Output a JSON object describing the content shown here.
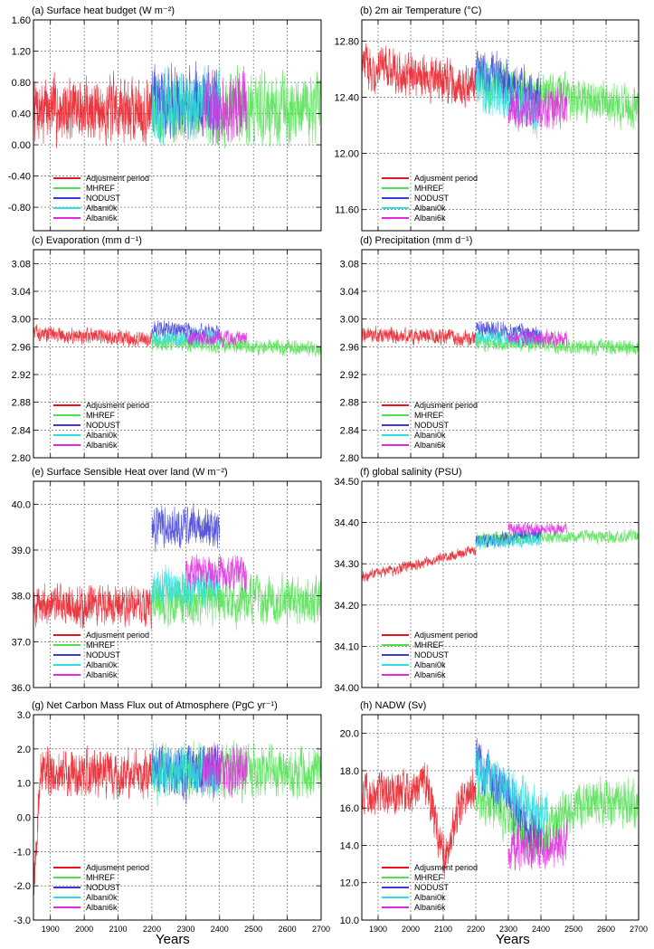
{
  "figure": {
    "xaxis_label": "Years"
  },
  "legend": [
    {
      "name": "Adjusment period",
      "color": "#e8141e"
    },
    {
      "name": "MHREF",
      "color": "#4ee04e"
    },
    {
      "name": "NODUST",
      "color": "#3a3ad8"
    },
    {
      "name": "Albani0k",
      "color": "#30dede"
    },
    {
      "name": "Albani6k",
      "color": "#e028e0"
    }
  ],
  "chart_data": [
    {
      "type": "line",
      "title": "(a) Surface heat budget (W m⁻²)",
      "xlabel": "",
      "ylabel": "",
      "xlim": [
        1850,
        2700
      ],
      "ylim": [
        -1.1,
        1.6
      ],
      "yticks": [
        -0.8,
        -0.4,
        0.0,
        0.4,
        0.8,
        1.2,
        1.6
      ],
      "ytick_labels": [
        "-0.80",
        "-0.40",
        "0.00",
        "0.40",
        "0.80",
        "1.20",
        "1.60"
      ],
      "show_xtick_labels": false,
      "grid": true,
      "legend_position": "bottom-left",
      "series": [
        {
          "name": "Adjusment period",
          "x_start": 1850,
          "x_end": 2200,
          "base": 0.45,
          "amp": 0.32,
          "drift": 0
        },
        {
          "name": "MHREF",
          "x_start": 2200,
          "x_end": 2700,
          "base": 0.45,
          "amp": 0.35,
          "drift": 0
        },
        {
          "name": "NODUST",
          "x_start": 2200,
          "x_end": 2400,
          "base": 0.55,
          "amp": 0.35,
          "drift": 0
        },
        {
          "name": "Albani0k",
          "x_start": 2200,
          "x_end": 2400,
          "base": 0.5,
          "amp": 0.35,
          "drift": 0
        },
        {
          "name": "Albani6k",
          "x_start": 2350,
          "x_end": 2480,
          "base": 0.5,
          "amp": 0.35,
          "drift": 0
        }
      ]
    },
    {
      "type": "line",
      "title": "(b) 2m air Temperature (°C)",
      "xlabel": "",
      "ylabel": "",
      "xlim": [
        1850,
        2700
      ],
      "ylim": [
        11.45,
        12.95
      ],
      "yticks": [
        11.6,
        12.0,
        12.4,
        12.8
      ],
      "ytick_labels": [
        "11.60",
        "12.00",
        "12.40",
        "12.80"
      ],
      "show_xtick_labels": false,
      "grid": true,
      "legend_position": "bottom-left",
      "series": [
        {
          "name": "Adjusment period",
          "x_start": 1850,
          "x_end": 2200,
          "base": 12.55,
          "amp": 0.12,
          "drift": -0.15
        },
        {
          "name": "MHREF",
          "x_start": 2200,
          "x_end": 2700,
          "base": 12.42,
          "amp": 0.12,
          "drift": -0.2
        },
        {
          "name": "NODUST",
          "x_start": 2200,
          "x_end": 2400,
          "base": 12.5,
          "amp": 0.13,
          "drift": -0.25
        },
        {
          "name": "Albani0k",
          "x_start": 2200,
          "x_end": 2400,
          "base": 12.4,
          "amp": 0.14,
          "drift": -0.2
        },
        {
          "name": "Albani6k",
          "x_start": 2300,
          "x_end": 2480,
          "base": 12.32,
          "amp": 0.12,
          "drift": 0
        }
      ]
    },
    {
      "type": "line",
      "title": "(c) Evaporation (mm d⁻¹)",
      "xlabel": "",
      "ylabel": "",
      "xlim": [
        1850,
        2700
      ],
      "ylim": [
        2.8,
        3.1
      ],
      "yticks": [
        2.8,
        2.84,
        2.88,
        2.92,
        2.96,
        3.0,
        3.04,
        3.08
      ],
      "ytick_labels": [
        "2.80",
        "2.84",
        "2.88",
        "2.92",
        "2.96",
        "3.00",
        "3.04",
        "3.08"
      ],
      "show_xtick_labels": false,
      "grid": true,
      "legend_position": "bottom-left",
      "series": [
        {
          "name": "Adjusment period",
          "x_start": 1850,
          "x_end": 2200,
          "base": 2.975,
          "amp": 0.009,
          "drift": -0.008
        },
        {
          "name": "MHREF",
          "x_start": 2200,
          "x_end": 2700,
          "base": 2.962,
          "amp": 0.009,
          "drift": -0.01
        },
        {
          "name": "NODUST",
          "x_start": 2200,
          "x_end": 2400,
          "base": 2.982,
          "amp": 0.01,
          "drift": -0.01
        },
        {
          "name": "Albani0k",
          "x_start": 2200,
          "x_end": 2400,
          "base": 2.972,
          "amp": 0.01,
          "drift": 0
        },
        {
          "name": "Albani6k",
          "x_start": 2300,
          "x_end": 2480,
          "base": 2.972,
          "amp": 0.009,
          "drift": 0
        }
      ]
    },
    {
      "type": "line",
      "title": "(d) Precipitation (mm d⁻¹)",
      "xlabel": "",
      "ylabel": "",
      "xlim": [
        1850,
        2700
      ],
      "ylim": [
        2.8,
        3.1
      ],
      "yticks": [
        2.8,
        2.84,
        2.88,
        2.92,
        2.96,
        3.0,
        3.04,
        3.08
      ],
      "ytick_labels": [
        "2.80",
        "2.84",
        "2.88",
        "2.92",
        "2.96",
        "3.00",
        "3.04",
        "3.08"
      ],
      "show_xtick_labels": false,
      "grid": true,
      "legend_position": "bottom-left",
      "series": [
        {
          "name": "Adjusment period",
          "x_start": 1850,
          "x_end": 2200,
          "base": 2.975,
          "amp": 0.009,
          "drift": -0.008
        },
        {
          "name": "MHREF",
          "x_start": 2200,
          "x_end": 2700,
          "base": 2.962,
          "amp": 0.009,
          "drift": -0.01
        },
        {
          "name": "NODUST",
          "x_start": 2200,
          "x_end": 2400,
          "base": 2.982,
          "amp": 0.01,
          "drift": -0.01
        },
        {
          "name": "Albani0k",
          "x_start": 2200,
          "x_end": 2400,
          "base": 2.972,
          "amp": 0.01,
          "drift": 0
        },
        {
          "name": "Albani6k",
          "x_start": 2300,
          "x_end": 2480,
          "base": 2.972,
          "amp": 0.009,
          "drift": 0
        }
      ]
    },
    {
      "type": "line",
      "title": "(e) Surface Sensible Heat over land (W m⁻²)",
      "xlabel": "",
      "ylabel": "",
      "xlim": [
        1850,
        2700
      ],
      "ylim": [
        36.0,
        40.5
      ],
      "yticks": [
        36.0,
        37.0,
        38.0,
        39.0,
        40.0
      ],
      "ytick_labels": [
        "36.0",
        "37.0",
        "38.0",
        "39.0",
        "40.0"
      ],
      "show_xtick_labels": false,
      "grid": true,
      "legend_position": "bottom-left",
      "series": [
        {
          "name": "Adjusment period",
          "x_start": 1850,
          "x_end": 2200,
          "base": 37.8,
          "amp": 0.35,
          "drift": 0
        },
        {
          "name": "MHREF",
          "x_start": 2200,
          "x_end": 2700,
          "base": 37.9,
          "amp": 0.4,
          "drift": 0
        },
        {
          "name": "NODUST",
          "x_start": 2200,
          "x_end": 2400,
          "base": 39.5,
          "amp": 0.35,
          "drift": 0
        },
        {
          "name": "Albani0k",
          "x_start": 2200,
          "x_end": 2400,
          "base": 38.2,
          "amp": 0.35,
          "drift": 0
        },
        {
          "name": "Albani6k",
          "x_start": 2300,
          "x_end": 2480,
          "base": 38.5,
          "amp": 0.3,
          "drift": 0
        }
      ]
    },
    {
      "type": "line",
      "title": "(f) global salinity (PSU)",
      "xlabel": "",
      "ylabel": "",
      "xlim": [
        1850,
        2700
      ],
      "ylim": [
        34.0,
        34.5
      ],
      "yticks": [
        34.0,
        34.1,
        34.2,
        34.3,
        34.4,
        34.5
      ],
      "ytick_labels": [
        "34.00",
        "34.10",
        "34.20",
        "34.30",
        "34.40",
        "34.50"
      ],
      "show_xtick_labels": false,
      "grid": true,
      "legend_position": "bottom-left",
      "series": [
        {
          "name": "Adjusment period",
          "x_start": 1850,
          "x_end": 2200,
          "base": 34.3,
          "amp": 0.01,
          "drift": 0.065
        },
        {
          "name": "MHREF",
          "x_start": 2200,
          "x_end": 2700,
          "base": 34.365,
          "amp": 0.012,
          "drift": 0.005
        },
        {
          "name": "NODUST",
          "x_start": 2200,
          "x_end": 2400,
          "base": 34.362,
          "amp": 0.013,
          "drift": 0.02
        },
        {
          "name": "Albani0k",
          "x_start": 2200,
          "x_end": 2400,
          "base": 34.355,
          "amp": 0.013,
          "drift": 0.01
        },
        {
          "name": "Albani6k",
          "x_start": 2300,
          "x_end": 2480,
          "base": 34.385,
          "amp": 0.012,
          "drift": 0
        }
      ]
    },
    {
      "type": "line",
      "title": "(g) Net Carbon Mass Flux out of Atmosphere (PgC yr⁻¹)",
      "xlabel": "Years",
      "ylabel": "",
      "xlim": [
        1850,
        2700
      ],
      "ylim": [
        -3.0,
        3.0
      ],
      "yticks": [
        -3.0,
        -2.0,
        -1.0,
        0.0,
        1.0,
        2.0,
        3.0
      ],
      "ytick_labels": [
        "-3.0",
        "-2.0",
        "-1.0",
        "0.0",
        "1.0",
        "2.0",
        "3.0"
      ],
      "xticks": [
        1900,
        2000,
        2100,
        2200,
        2300,
        2400,
        2500,
        2600,
        2700
      ],
      "show_xtick_labels": true,
      "grid": true,
      "legend_position": "bottom-left",
      "series": [
        {
          "name": "Adjusment period",
          "x_start": 1850,
          "x_end": 2200,
          "base": 1.3,
          "amp": 0.55,
          "drift": 0,
          "spinup": [
            -2.5,
            1870
          ]
        },
        {
          "name": "MHREF",
          "x_start": 2200,
          "x_end": 2700,
          "base": 1.35,
          "amp": 0.6,
          "drift": 0
        },
        {
          "name": "NODUST",
          "x_start": 2200,
          "x_end": 2400,
          "base": 1.35,
          "amp": 0.6,
          "drift": 0
        },
        {
          "name": "Albani0k",
          "x_start": 2200,
          "x_end": 2400,
          "base": 1.3,
          "amp": 0.6,
          "drift": 0
        },
        {
          "name": "Albani6k",
          "x_start": 2350,
          "x_end": 2480,
          "base": 1.4,
          "amp": 0.55,
          "drift": 0
        }
      ]
    },
    {
      "type": "line",
      "title": "(h) NADW (Sv)",
      "xlabel": "Years",
      "ylabel": "",
      "xlim": [
        1850,
        2700
      ],
      "ylim": [
        10.0,
        21.0
      ],
      "yticks": [
        10.0,
        12.0,
        14.0,
        16.0,
        18.0,
        20.0
      ],
      "ytick_labels": [
        "10.0",
        "12.0",
        "14.0",
        "16.0",
        "18.0",
        "20.0"
      ],
      "xticks": [
        1900,
        2000,
        2100,
        2200,
        2300,
        2400,
        2500,
        2600,
        2700
      ],
      "show_xtick_labels": true,
      "grid": true,
      "legend_position": "bottom-left",
      "series": [
        {
          "name": "Adjusment period",
          "x_start": 1850,
          "x_end": 2200,
          "base": 16.8,
          "amp": 0.9,
          "drift": 0,
          "dip": [
            2100,
            13.5,
            40
          ],
          "bump": [
            2050,
            18.0,
            30
          ]
        },
        {
          "name": "MHREF",
          "x_start": 2200,
          "x_end": 2700,
          "base": 16.3,
          "amp": 1.0,
          "drift": 0,
          "dip": [
            2380,
            14.2,
            80
          ]
        },
        {
          "name": "NODUST",
          "x_start": 2200,
          "x_end": 2400,
          "base": 16.5,
          "amp": 1.0,
          "drift": -4.0
        },
        {
          "name": "Albani0k",
          "x_start": 2200,
          "x_end": 2420,
          "base": 16.8,
          "amp": 1.0,
          "drift": -2.5
        },
        {
          "name": "Albani6k",
          "x_start": 2300,
          "x_end": 2480,
          "base": 14.0,
          "amp": 1.0,
          "drift": 0.5
        }
      ]
    }
  ]
}
